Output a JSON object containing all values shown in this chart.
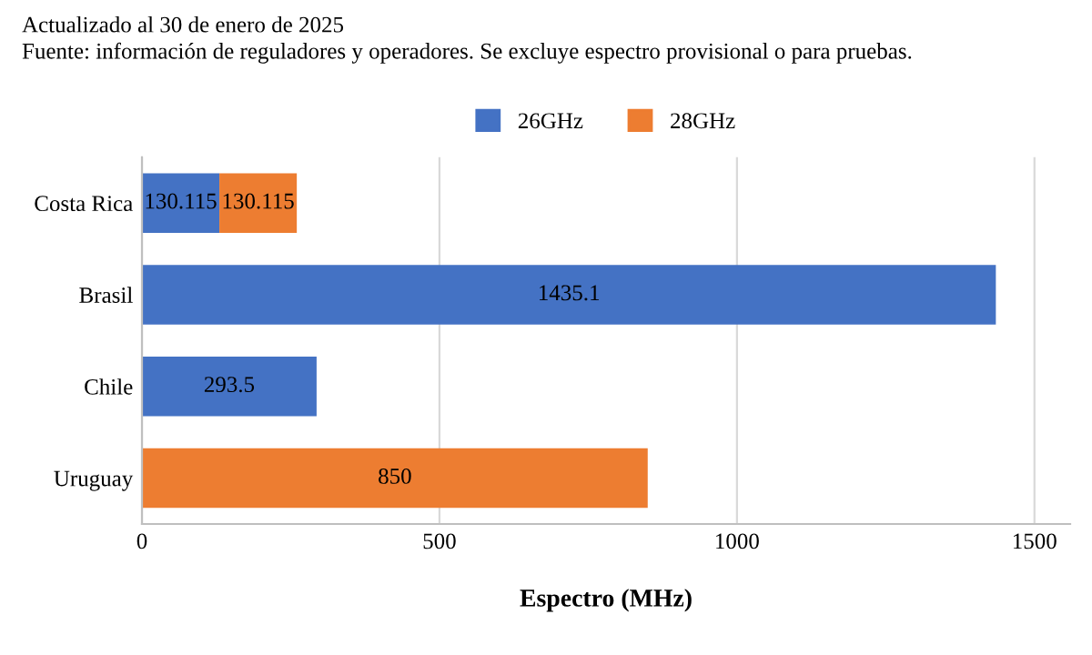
{
  "chart_data": {
    "type": "bar",
    "orientation": "horizontal",
    "stacked": true,
    "title": "Actualizado al 30 de enero de 2025",
    "annotations": [
      "Fuente: información de reguladores y operadores. Se excluye espectro provisional o para pruebas."
    ],
    "categories": [
      "Costa Rica",
      "Brasil",
      "Chile",
      "Uruguay"
    ],
    "series": [
      {
        "name": "26GHz",
        "color": "#4472c4",
        "values": [
          130.115,
          1435.1,
          293.5,
          null
        ]
      },
      {
        "name": "28GHz",
        "color": "#ed7d31",
        "values": [
          130.115,
          null,
          null,
          850
        ]
      }
    ],
    "xlabel": "Espectro (MHz)",
    "xlim": [
      0,
      1560
    ],
    "xticks": [
      0,
      500,
      1000,
      1500
    ],
    "grid": "x",
    "legend": "top",
    "data_labels": true
  }
}
